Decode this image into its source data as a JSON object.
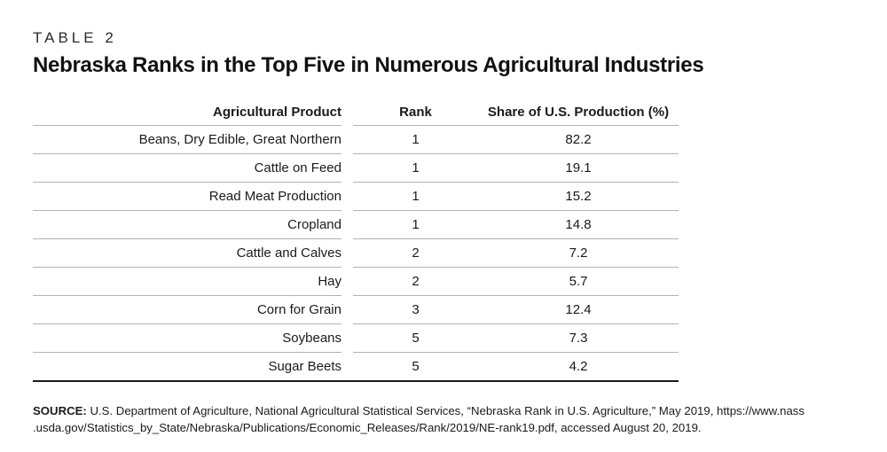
{
  "table_label": "TABLE 2",
  "title": "Nebraska Ranks in the Top Five in Numerous Agricultural Industries",
  "columns": [
    "Agricultural Product",
    "Rank",
    "Share of U.S. Production (%)"
  ],
  "rows": [
    {
      "product": "Beans, Dry Edible, Great Northern",
      "rank": "1",
      "share": "82.2"
    },
    {
      "product": "Cattle on Feed",
      "rank": "1",
      "share": "19.1"
    },
    {
      "product": "Read Meat Production",
      "rank": "1",
      "share": "15.2"
    },
    {
      "product": "Cropland",
      "rank": "1",
      "share": "14.8"
    },
    {
      "product": "Cattle and Calves",
      "rank": "2",
      "share": "7.2"
    },
    {
      "product": "Hay",
      "rank": "2",
      "share": "5.7"
    },
    {
      "product": "Corn for Grain",
      "rank": "3",
      "share": "12.4"
    },
    {
      "product": "Soybeans",
      "rank": "5",
      "share": "7.3"
    },
    {
      "product": "Sugar Beets",
      "rank": "5",
      "share": "4.2"
    }
  ],
  "source": {
    "label": "SOURCE:",
    "line1": "U.S. Department of Agriculture, National Agricultural Statistical Services, “Nebraska Rank in U.S. Agriculture,” May 2019, https://www.nass",
    "line2": ".usda.gov/Statistics_by_State/Nebraska/Publications/Economic_Releases/Rank/2019/NE-rank19.pdf, accessed August 20, 2019."
  },
  "colors": {
    "text": "#1a1a1a",
    "rule_light": "#b2b2b2",
    "rule_heavy": "#1a1a1a",
    "background": "#ffffff"
  },
  "chart_data": {
    "type": "table",
    "title": "Nebraska Ranks in the Top Five in Numerous Agricultural Industries",
    "columns": [
      "Agricultural Product",
      "Rank",
      "Share of U.S. Production (%)"
    ],
    "rows": [
      [
        "Beans, Dry Edible, Great Northern",
        1,
        82.2
      ],
      [
        "Cattle on Feed",
        1,
        19.1
      ],
      [
        "Read Meat Production",
        1,
        15.2
      ],
      [
        "Cropland",
        1,
        14.8
      ],
      [
        "Cattle and Calves",
        2,
        7.2
      ],
      [
        "Hay",
        2,
        5.7
      ],
      [
        "Corn for Grain",
        3,
        12.4
      ],
      [
        "Soybeans",
        5,
        7.3
      ],
      [
        "Sugar Beets",
        5,
        4.2
      ]
    ]
  }
}
